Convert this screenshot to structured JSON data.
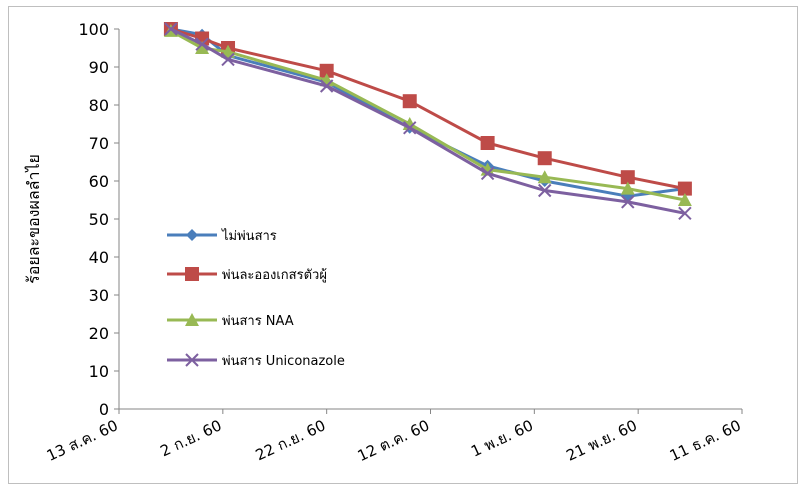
{
  "chart_data": {
    "type": "line",
    "title": "",
    "xlabel": "",
    "ylabel": "ร้อยละของผลลำไย",
    "ylim": [
      0,
      100
    ],
    "yticks": [
      0,
      10,
      20,
      30,
      40,
      50,
      60,
      70,
      80,
      90,
      100
    ],
    "xlim": [
      "2017-08-13",
      "2017-12-11"
    ],
    "xticks": [
      "13 ส.ค. 60",
      "2 ก.ย. 60",
      "22 ก.ย. 60",
      "12 ต.ค. 60",
      "1 พ.ย. 60",
      "21 พ.ย. 60",
      "11 ธ.ค. 60"
    ],
    "legend_position": "left-center",
    "series": [
      {
        "name": "ไม่พ่นสาร",
        "color": "#4a7ebb",
        "marker": "diamond",
        "x": [
          "2017-08-23",
          "2017-08-29",
          "2017-09-03",
          "2017-09-22",
          "2017-10-08",
          "2017-10-23",
          "2017-11-03",
          "2017-11-19",
          "2017-11-30"
        ],
        "y": [
          100,
          98.5,
          93,
          86,
          74,
          64,
          60,
          56,
          58
        ]
      },
      {
        "name": "พ่นละอองเกสรตัวผู้",
        "color": "#be4b48",
        "marker": "square",
        "x": [
          "2017-08-23",
          "2017-08-29",
          "2017-09-03",
          "2017-09-22",
          "2017-10-08",
          "2017-10-23",
          "2017-11-03",
          "2017-11-19",
          "2017-11-30"
        ],
        "y": [
          100,
          97.5,
          95,
          89,
          81,
          70,
          66,
          61,
          58
        ]
      },
      {
        "name": "พ่นสาร NAA",
        "color": "#98b954",
        "marker": "triangle",
        "x": [
          "2017-08-23",
          "2017-08-29",
          "2017-09-03",
          "2017-09-22",
          "2017-10-08",
          "2017-10-23",
          "2017-11-03",
          "2017-11-19",
          "2017-11-30"
        ],
        "y": [
          99.5,
          95,
          94,
          86.5,
          75,
          63,
          61,
          58,
          55
        ]
      },
      {
        "name": "พ่นสาร Uniconazole",
        "color": "#7d60a0",
        "marker": "x",
        "x": [
          "2017-08-23",
          "2017-08-29",
          "2017-09-03",
          "2017-09-22",
          "2017-10-08",
          "2017-10-23",
          "2017-11-03",
          "2017-11-19",
          "2017-11-30"
        ],
        "y": [
          100,
          96,
          92,
          85,
          74,
          62,
          57.5,
          54.5,
          51.5
        ]
      }
    ]
  }
}
